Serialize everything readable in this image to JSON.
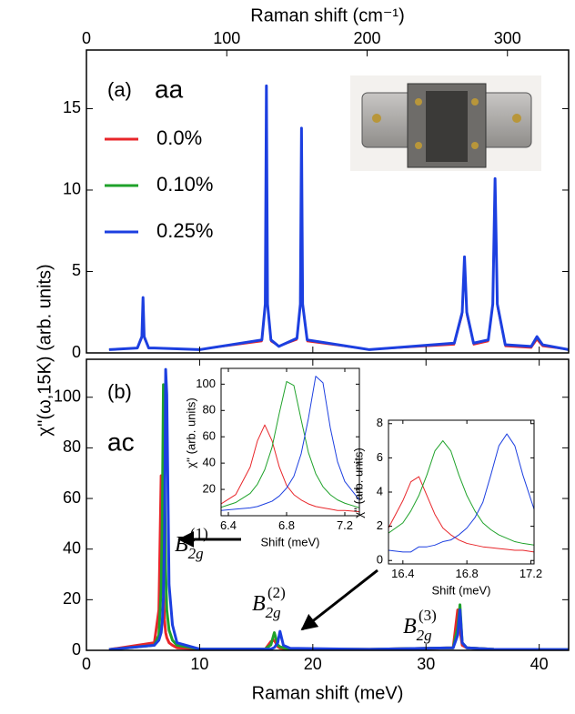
{
  "chart_data": [
    {
      "type": "line",
      "ylabel": "χ''(ω,15K) (arb. units)",
      "x2label": "Raman shift (cm⁻¹)",
      "panel_label": "(a)",
      "legend_title": "aa",
      "xlim": [
        0,
        42.6
      ],
      "xticks": [
        0,
        10,
        20,
        30,
        40
      ],
      "x2lim": [
        0,
        343.6
      ],
      "x2ticks": [
        0,
        100,
        200,
        300
      ],
      "ylim": [
        0,
        18.6
      ],
      "yticks": [
        0,
        5,
        10,
        15
      ],
      "x": [
        2,
        4.5,
        4.9,
        5.0,
        5.1,
        5.5,
        6,
        10,
        15.5,
        15.8,
        15.9,
        16.0,
        16.3,
        17,
        18.6,
        18.9,
        19.0,
        19.1,
        19.5,
        25,
        32.5,
        33.2,
        33.4,
        33.6,
        34.2,
        35.5,
        35.9,
        36.1,
        36.3,
        37,
        39.3,
        39.8,
        40.3,
        42.6
      ],
      "series": [
        {
          "name": "0.0%",
          "color": "#e8262a",
          "values": [
            0.2,
            0.3,
            0.9,
            3.0,
            0.9,
            0.3,
            0.3,
            0.2,
            0.7,
            2.8,
            15.5,
            2.8,
            0.7,
            0.4,
            0.8,
            2.8,
            13.0,
            2.8,
            0.7,
            0.2,
            0.5,
            2.3,
            5.5,
            2.3,
            0.5,
            0.7,
            2.8,
            10.0,
            2.8,
            0.4,
            0.3,
            0.8,
            0.4,
            0.2
          ]
        },
        {
          "name": "0.10%",
          "color": "#1fa22a",
          "values": [
            0.2,
            0.3,
            1.0,
            3.2,
            1.0,
            0.3,
            0.3,
            0.2,
            0.8,
            2.9,
            16.0,
            2.9,
            0.8,
            0.4,
            0.9,
            2.9,
            13.5,
            2.9,
            0.8,
            0.2,
            0.6,
            2.4,
            5.7,
            2.4,
            0.6,
            0.8,
            2.9,
            10.4,
            2.9,
            0.5,
            0.4,
            0.9,
            0.5,
            0.2
          ]
        },
        {
          "name": "0.25%",
          "color": "#1c3fe0",
          "values": [
            0.2,
            0.3,
            1.0,
            3.4,
            1.0,
            0.3,
            0.3,
            0.2,
            0.8,
            3.0,
            16.4,
            3.0,
            0.8,
            0.4,
            0.9,
            3.0,
            13.8,
            3.0,
            0.8,
            0.2,
            0.6,
            2.5,
            5.9,
            2.5,
            0.6,
            0.8,
            3.0,
            10.7,
            3.0,
            0.5,
            0.4,
            1.0,
            0.5,
            0.2
          ]
        }
      ]
    },
    {
      "type": "line",
      "xlabel": "Raman shift (meV)",
      "panel_label": "(b)",
      "legend_title": "ac",
      "xlim": [
        0,
        42.6
      ],
      "xticks": [
        0,
        10,
        20,
        30,
        40
      ],
      "ylim": [
        0,
        115
      ],
      "yticks": [
        0,
        20,
        40,
        60,
        80,
        100
      ],
      "x": [
        2,
        6,
        6.4,
        6.6,
        6.7,
        6.8,
        6.9,
        7.0,
        7.1,
        7.3,
        7.6,
        8,
        10,
        15.8,
        16.3,
        16.6,
        16.9,
        17.1,
        17.4,
        18,
        25,
        32.4,
        32.8,
        33.0,
        33.2,
        33.6,
        36,
        42.6
      ],
      "series": [
        {
          "name": "0.0%",
          "color": "#e8262a",
          "values": [
            0.3,
            3,
            16,
            69,
            57,
            23,
            12,
            7,
            5,
            3,
            2,
            1,
            0.5,
            0.5,
            3.5,
            4,
            1.5,
            0.9,
            0.7,
            0.5,
            0.4,
            1,
            16,
            8,
            2,
            1,
            0.4,
            0.3
          ]
        },
        {
          "name": "0.10%",
          "color": "#1fa22a",
          "values": [
            0.3,
            2,
            6,
            24,
            52,
            105,
            73,
            32,
            16,
            8,
            4,
            2,
            0.5,
            0.5,
            2.2,
            7,
            2.2,
            1.4,
            1,
            0.5,
            0.4,
            1,
            9,
            18,
            3,
            1,
            0.4,
            0.3
          ]
        },
        {
          "name": "0.25%",
          "color": "#1c3fe0",
          "values": [
            0.3,
            2,
            4,
            7,
            11,
            21,
            47,
            111,
            101,
            26,
            10,
            3,
            0.5,
            0.5,
            0.5,
            1.1,
            3,
            7.5,
            2,
            0.8,
            0.4,
            1,
            6,
            16,
            3,
            1,
            0.4,
            0.3
          ]
        }
      ],
      "annotations": [
        {
          "base": "B",
          "sub": "2g",
          "sup": "(1)"
        },
        {
          "base": "B",
          "sub": "2g",
          "sup": "(2)"
        },
        {
          "base": "B",
          "sub": "2g",
          "sup": "(3)"
        }
      ]
    },
    {
      "type": "line",
      "xlabel": "Shift (meV)",
      "ylabel": "χ'' (arb. units)",
      "xlim": [
        6.35,
        7.3
      ],
      "xticks": [
        6.4,
        6.8,
        7.2
      ],
      "ylim": [
        0,
        112
      ],
      "yticks": [
        20,
        40,
        60,
        80,
        100
      ],
      "x": [
        6.35,
        6.45,
        6.55,
        6.6,
        6.65,
        6.7,
        6.75,
        6.8,
        6.85,
        6.9,
        6.95,
        7.0,
        7.05,
        7.1,
        7.15,
        7.2,
        7.3
      ],
      "series": [
        {
          "name": "0.0%",
          "color": "#e8262a",
          "values": [
            9,
            16,
            37,
            57,
            69,
            57,
            37,
            23,
            16,
            12,
            9,
            7,
            6,
            5,
            4,
            4,
            3
          ]
        },
        {
          "name": "0.10%",
          "color": "#1fa22a",
          "values": [
            6.4,
            10,
            17,
            24,
            35,
            52,
            78,
            102,
            99,
            73,
            48,
            32,
            22,
            16,
            12,
            9.5,
            6
          ]
        },
        {
          "name": "0.25%",
          "color": "#1c3fe0",
          "values": [
            4,
            5,
            6,
            7,
            9,
            11,
            15,
            21,
            30,
            47,
            74,
            106,
            101,
            67,
            41,
            26,
            12
          ]
        }
      ]
    },
    {
      "type": "line",
      "xlabel": "Shift (meV)",
      "ylabel": "χ'' (arb. units)",
      "xlim": [
        16.31,
        17.22
      ],
      "xticks": [
        16.4,
        16.8,
        17.2
      ],
      "ylim": [
        -0.2,
        8.2
      ],
      "yticks": [
        0,
        2,
        4,
        6,
        8
      ],
      "x": [
        16.31,
        16.4,
        16.45,
        16.5,
        16.55,
        16.6,
        16.65,
        16.7,
        16.75,
        16.8,
        16.85,
        16.9,
        16.95,
        17.0,
        17.05,
        17.1,
        17.15,
        17.22
      ],
      "series": [
        {
          "name": "0.0%",
          "color": "#e8262a",
          "values": [
            1.9,
            3.5,
            4.6,
            4.9,
            3.8,
            2.7,
            1.9,
            1.5,
            1.2,
            1.0,
            0.9,
            0.8,
            0.75,
            0.7,
            0.65,
            0.6,
            0.6,
            0.5
          ]
        },
        {
          "name": "0.10%",
          "color": "#1fa22a",
          "values": [
            1.6,
            2.2,
            2.9,
            3.8,
            5.0,
            6.4,
            7.0,
            6.4,
            5.0,
            3.8,
            2.9,
            2.2,
            1.8,
            1.5,
            1.3,
            1.1,
            1.0,
            0.9
          ]
        },
        {
          "name": "0.25%",
          "color": "#1c3fe0",
          "values": [
            0.6,
            0.5,
            0.5,
            0.8,
            0.8,
            0.9,
            1.1,
            1.2,
            1.5,
            1.9,
            2.5,
            3.4,
            5.0,
            6.7,
            7.4,
            6.7,
            5.0,
            3.0
          ]
        }
      ]
    }
  ]
}
